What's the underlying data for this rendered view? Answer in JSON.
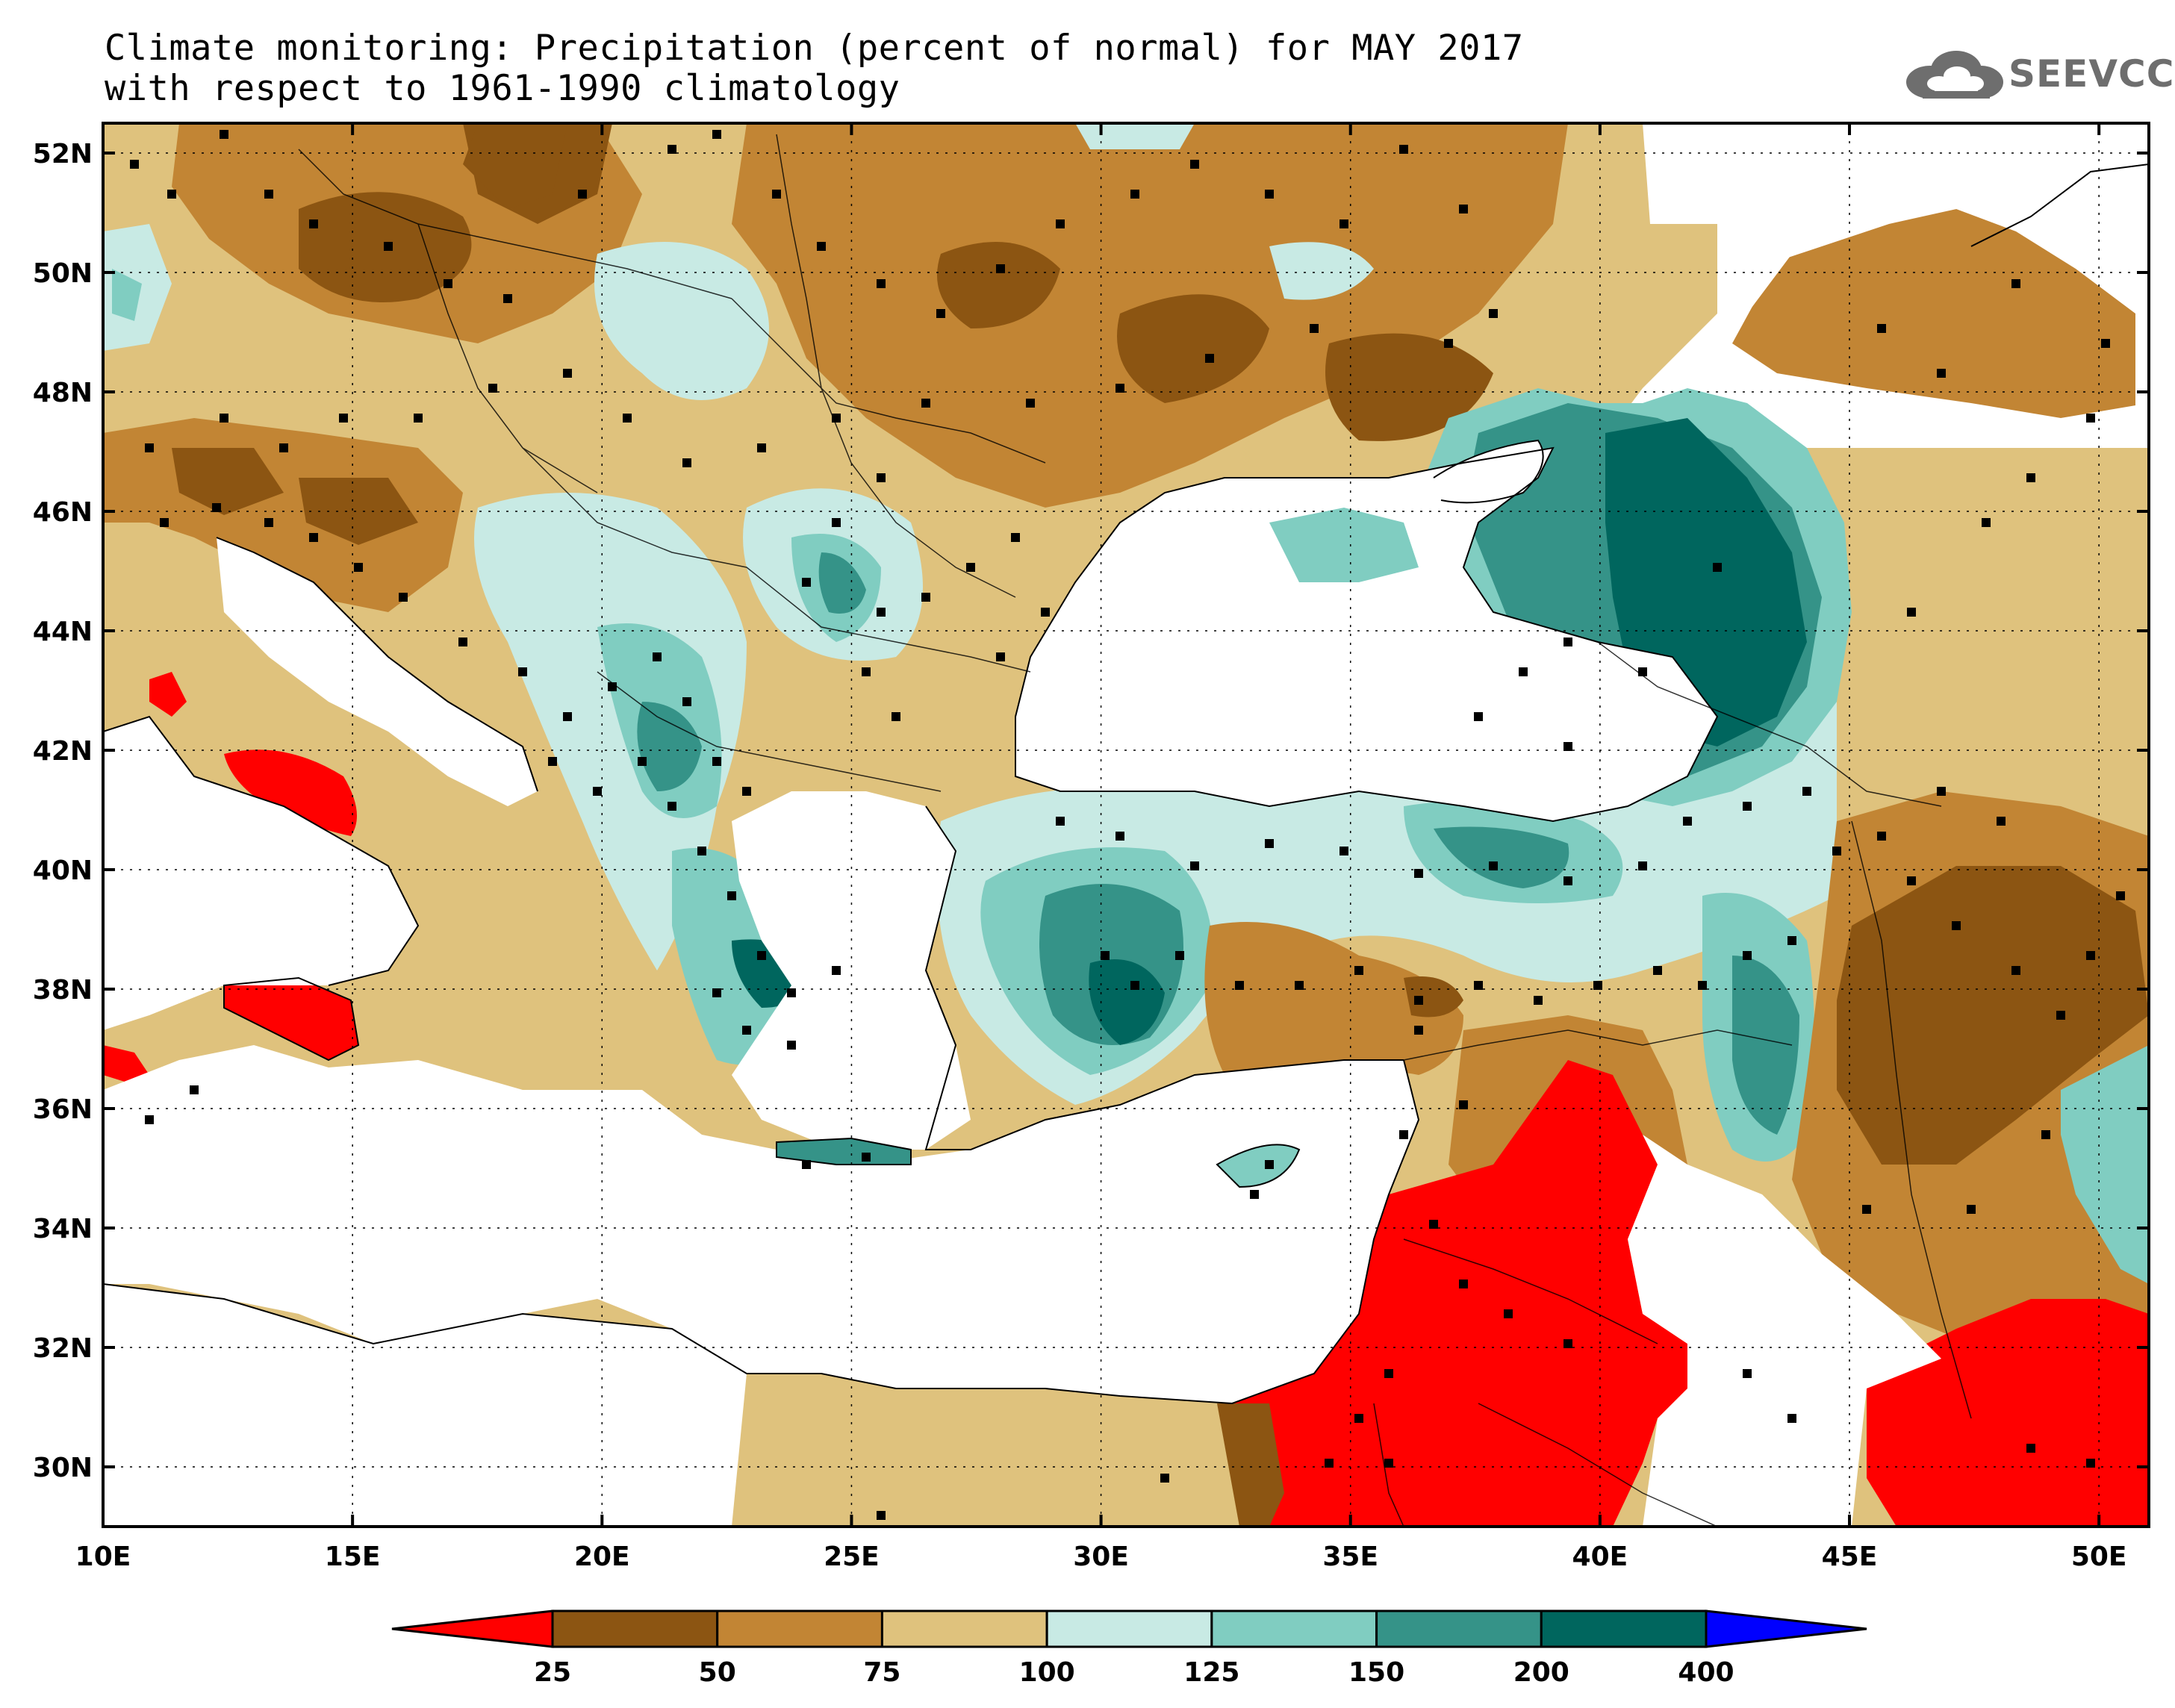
{
  "title": {
    "line1": "Climate monitoring: Precipitation (percent of normal) for MAY 2017",
    "line2": "with respect to 1961-1990 climatology"
  },
  "logo": {
    "text": "SEEVCCC",
    "icon": "cloud-logo-icon"
  },
  "map": {
    "lon_range": [
      10,
      51
    ],
    "lat_range": [
      29,
      52.5
    ],
    "lon_labels": [
      "10E",
      "15E",
      "20E",
      "25E",
      "30E",
      "35E",
      "40E",
      "45E",
      "50E"
    ],
    "lat_labels": [
      "52N",
      "50N",
      "48N",
      "46N",
      "44N",
      "42N",
      "40N",
      "38N",
      "36N",
      "34N",
      "32N",
      "30N"
    ]
  },
  "colorbar": {
    "boundaries": [
      "25",
      "50",
      "75",
      "100",
      "125",
      "150",
      "200",
      "400"
    ],
    "colors": [
      "#ff0000",
      "#8c5512",
      "#c28534",
      "#dfc27d",
      "#c8eae4",
      "#80cdc1",
      "#359388",
      "#00665e",
      "#0000ff"
    ]
  }
}
